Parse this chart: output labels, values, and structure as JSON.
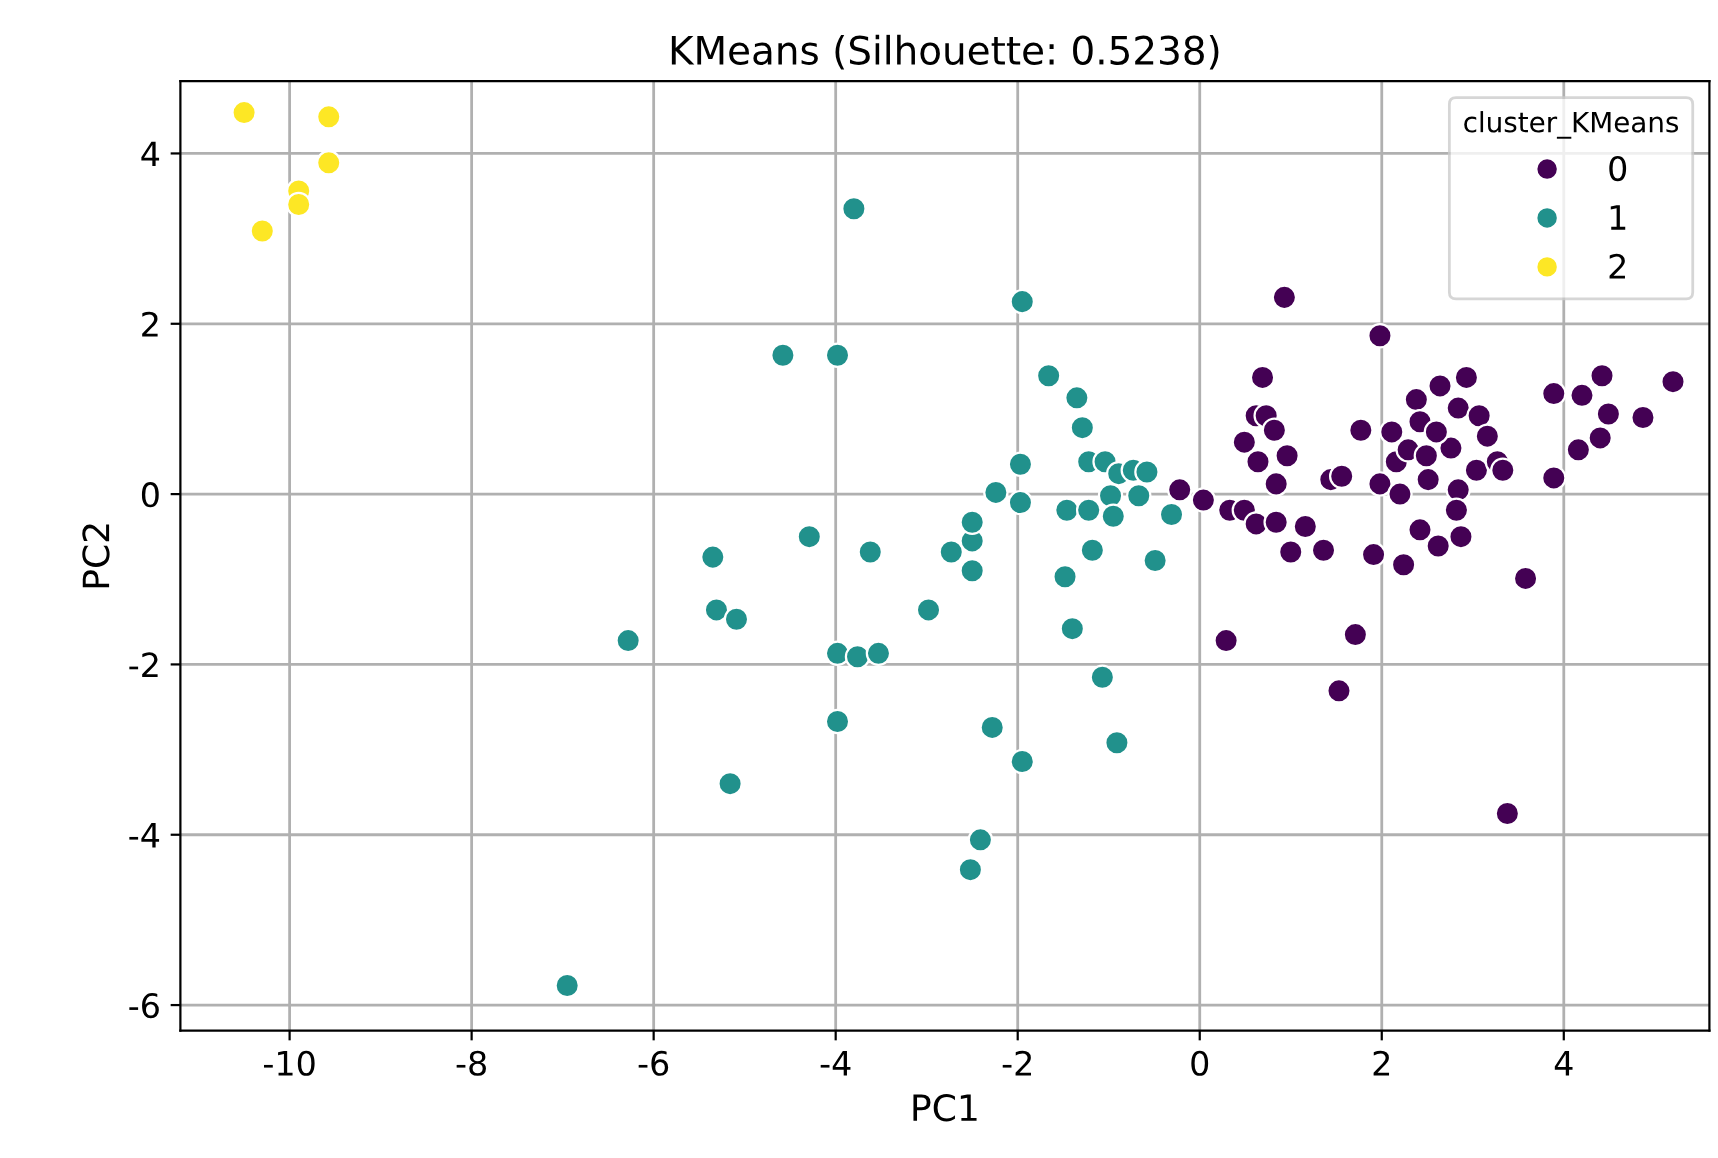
{
  "chart_data": {
    "type": "scatter",
    "title": "KMeans (Silhouette: 0.5238)",
    "xlabel": "PC1",
    "ylabel": "PC2",
    "legend_title": "cluster_KMeans",
    "legend": "top right",
    "grid": true,
    "marker": "circle",
    "xlim": [
      -11.2,
      5.6
    ],
    "ylim": [
      -6.3,
      4.85
    ],
    "xticks": [
      -10,
      -8,
      -6,
      -4,
      -2,
      0,
      2,
      4
    ],
    "yticks": [
      -6,
      -4,
      -2,
      0,
      2,
      4
    ],
    "series": [
      {
        "name": "0",
        "color": "#440154",
        "x": [
          0.93,
          1.98,
          0.69,
          0.62,
          0.73,
          0.82,
          0.49,
          0.96,
          0.64,
          0.84,
          -0.22,
          0.04,
          0.33,
          0.49,
          0.62,
          0.84,
          1.16,
          1.0,
          1.36,
          0.29,
          1.53,
          1.71,
          1.77,
          1.44,
          1.56,
          1.98,
          1.91,
          2.24,
          2.11,
          2.2,
          2.16,
          2.29,
          2.38,
          2.64,
          2.93,
          2.84,
          3.07,
          3.16,
          2.42,
          2.49,
          2.51,
          2.76,
          2.6,
          3.04,
          3.27,
          3.33,
          2.84,
          2.82,
          2.42,
          2.62,
          2.87,
          3.58,
          3.38,
          3.89,
          3.89,
          4.16,
          4.2,
          4.42,
          4.49,
          4.4,
          4.87,
          5.2
        ],
        "values": [
          2.31,
          1.86,
          1.37,
          0.92,
          0.92,
          0.75,
          0.61,
          0.45,
          0.38,
          0.12,
          0.05,
          -0.07,
          -0.19,
          -0.19,
          -0.35,
          -0.33,
          -0.38,
          -0.68,
          -0.66,
          -1.72,
          -2.31,
          -1.65,
          0.75,
          0.17,
          0.21,
          0.12,
          -0.71,
          -0.83,
          0.73,
          0.0,
          0.38,
          0.52,
          1.11,
          1.27,
          1.37,
          1.01,
          0.92,
          0.68,
          0.85,
          0.45,
          0.17,
          0.54,
          0.73,
          0.28,
          0.38,
          0.28,
          0.05,
          -0.19,
          -0.42,
          -0.61,
          -0.5,
          -0.99,
          -3.75,
          1.18,
          0.19,
          0.52,
          1.16,
          1.39,
          0.94,
          0.66,
          0.9,
          1.32
        ]
      },
      {
        "name": "1",
        "color": "#21918c",
        "x": [
          -6.95,
          -6.28,
          -5.35,
          -5.31,
          -5.09,
          -5.16,
          -4.58,
          -3.98,
          -4.29,
          -3.8,
          -3.62,
          -3.98,
          -3.76,
          -3.53,
          -3.98,
          -2.98,
          -2.73,
          -2.5,
          -2.5,
          -2.5,
          -2.24,
          -2.28,
          -2.41,
          -2.52,
          -1.97,
          -1.97,
          -1.95,
          -1.95,
          -1.66,
          -1.46,
          -1.48,
          -1.4,
          -1.35,
          -1.29,
          -1.22,
          -1.22,
          -1.18,
          -1.07,
          -1.04,
          -0.89,
          -0.98,
          -0.95,
          -0.91,
          -0.73,
          -0.67,
          -0.58,
          -0.49,
          -0.31
        ],
        "values": [
          -5.77,
          -1.72,
          -0.74,
          -1.36,
          -1.47,
          -3.4,
          1.63,
          1.63,
          -0.5,
          3.35,
          -0.68,
          -1.87,
          -1.91,
          -1.87,
          -2.67,
          -1.36,
          -0.68,
          -0.9,
          -0.55,
          -0.33,
          0.02,
          -2.74,
          -4.06,
          -4.41,
          -0.1,
          0.35,
          2.26,
          -3.14,
          1.39,
          -0.19,
          -0.97,
          -1.58,
          1.13,
          0.78,
          0.38,
          -0.19,
          -0.66,
          -2.15,
          0.38,
          0.24,
          -0.02,
          -0.26,
          -2.92,
          0.28,
          -0.02,
          0.26,
          -0.78,
          -0.24
        ]
      },
      {
        "name": "2",
        "color": "#fde725",
        "x": [
          -10.5,
          -9.57,
          -9.57,
          -9.9,
          -9.9,
          -10.3
        ],
        "values": [
          4.48,
          4.43,
          3.89,
          3.56,
          3.4,
          3.09
        ]
      }
    ]
  }
}
